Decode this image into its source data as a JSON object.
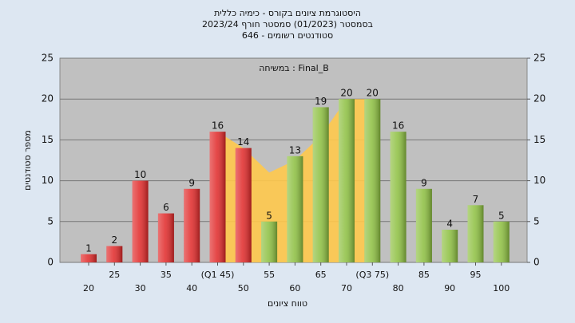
{
  "chart_data": {
    "type": "bar",
    "title": "היסטוגרמת ציונים בקורס - כימיה כללית",
    "subtitle": "בסמסטר  (01/2023)  סמסטר חורף 2023/24",
    "subtitle2": "סטודנטים רשומים - 646",
    "annotation": "במשיחה : Final_B",
    "x_label": "טווח ציונים",
    "y_label": "מספר סטודנטים",
    "categories": [
      "20",
      "25",
      "30",
      "35",
      "40",
      "(Q1 45)",
      "50",
      "55",
      "60",
      "65",
      "70",
      "(Q3 75)",
      "80",
      "85",
      "90",
      "95",
      "100"
    ],
    "values": [
      1,
      2,
      10,
      6,
      9,
      16,
      14,
      5,
      13,
      19,
      20,
      20,
      16,
      9,
      4,
      7,
      5
    ],
    "colors": [
      "#e02828",
      "#e02828",
      "#e02828",
      "#e02828",
      "#e02828",
      "#e02828",
      "#e02828",
      "#8cbf3f",
      "#8cbf3f",
      "#8cbf3f",
      "#8cbf3f",
      "#8cbf3f",
      "#8cbf3f",
      "#8cbf3f",
      "#8cbf3f",
      "#8cbf3f",
      "#8cbf3f"
    ],
    "area": {
      "color": "#ffc94d",
      "values": [
        null,
        null,
        null,
        null,
        null,
        16,
        14,
        11,
        12.5,
        15.5,
        20,
        20,
        null,
        null,
        null,
        null,
        null
      ]
    },
    "ylim": [
      0,
      25
    ],
    "yticks": [
      0,
      5,
      10,
      15,
      20,
      25
    ],
    "y2lim": [
      0,
      25
    ],
    "y2ticks": [
      0,
      5,
      10,
      15,
      20,
      25
    ],
    "grid": true
  }
}
